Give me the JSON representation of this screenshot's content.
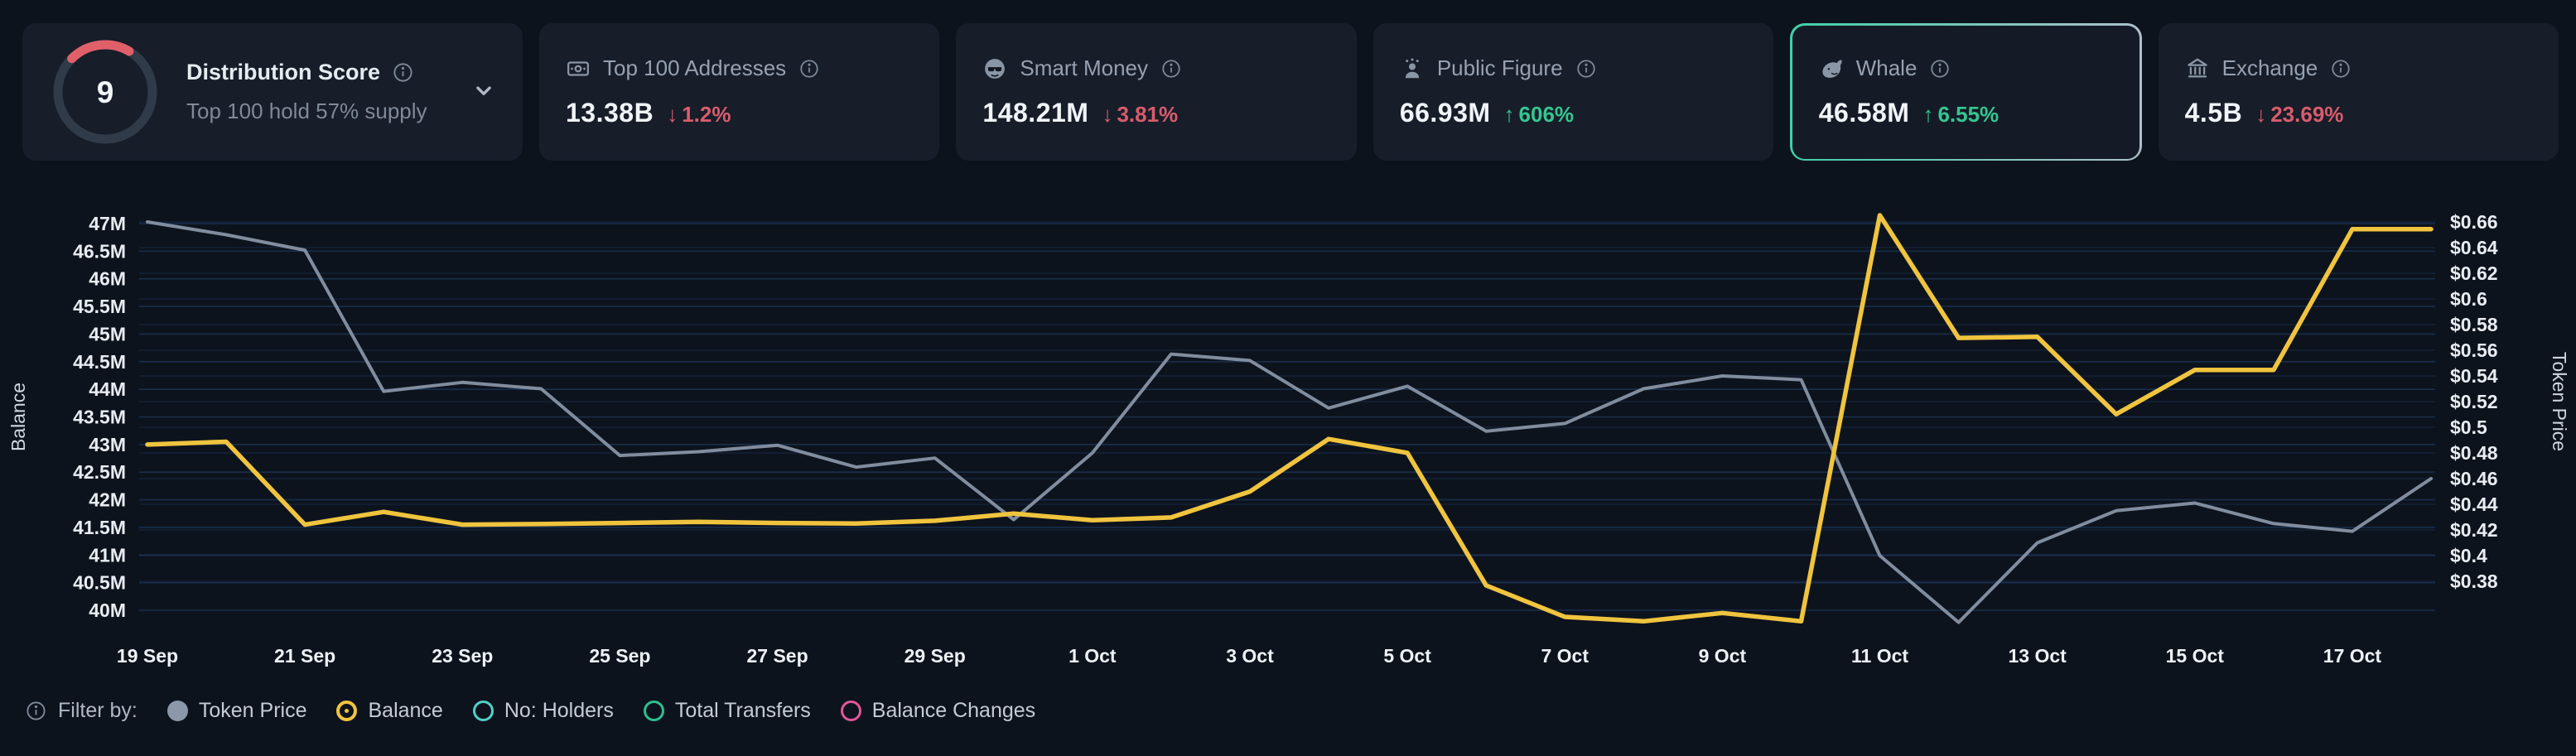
{
  "colors": {
    "background": "#0d131d",
    "card": "#171d29",
    "balance_line": "#f0c43e",
    "price_line": "#8b98a9",
    "up": "#35c690",
    "down": "#d95c6c",
    "selected_border": "#3fd0a8",
    "grid": "#24497a",
    "gauge_arc": "#e0606a"
  },
  "cards": {
    "distribution": {
      "score": "9",
      "title": "Distribution Score",
      "subtitle": "Top 100 hold 57% supply"
    },
    "stats": [
      {
        "id": "top-100-addresses",
        "title": "Top 100 Addresses",
        "value": "13.38B",
        "arrow": "↓",
        "change": "1.2%",
        "direction": "down",
        "selected": false
      },
      {
        "id": "smart-money",
        "title": "Smart Money",
        "value": "148.21M",
        "arrow": "↓",
        "change": "3.81%",
        "direction": "down",
        "selected": false
      },
      {
        "id": "public-figure",
        "title": "Public Figure",
        "value": "66.93M",
        "arrow": "↑",
        "change": "606%",
        "direction": "up",
        "selected": false
      },
      {
        "id": "whale",
        "title": "Whale",
        "value": "46.58M",
        "arrow": "↑",
        "change": "6.55%",
        "direction": "up",
        "selected": true
      },
      {
        "id": "exchange",
        "title": "Exchange",
        "value": "4.5B",
        "arrow": "↓",
        "change": "23.69%",
        "direction": "down",
        "selected": false
      }
    ]
  },
  "chart_data": {
    "type": "line",
    "x_dates": [
      "19 Sep",
      "20 Sep",
      "21 Sep",
      "22 Sep",
      "23 Sep",
      "24 Sep",
      "25 Sep",
      "26 Sep",
      "27 Sep",
      "28 Sep",
      "29 Sep",
      "30 Sep",
      "1 Oct",
      "2 Oct",
      "3 Oct",
      "4 Oct",
      "5 Oct",
      "6 Oct",
      "7 Oct",
      "8 Oct",
      "9 Oct",
      "10 Oct",
      "11 Oct",
      "12 Oct",
      "13 Oct",
      "14 Oct",
      "15 Oct",
      "16 Oct",
      "17 Oct",
      "18 Oct"
    ],
    "x_tick_labels": [
      "19 Sep",
      "21 Sep",
      "23 Sep",
      "25 Sep",
      "27 Sep",
      "29 Sep",
      "1 Oct",
      "3 Oct",
      "5 Oct",
      "7 Oct",
      "9 Oct",
      "11 Oct",
      "13 Oct",
      "15 Oct",
      "17 Oct"
    ],
    "x_tick_every": 2,
    "left_axis": {
      "label": "Balance",
      "unit": "M",
      "max": 47,
      "min": 40,
      "step": 0.5,
      "ticks": [
        "47M",
        "46.5M",
        "46M",
        "45.5M",
        "45M",
        "44.5M",
        "44M",
        "43.5M",
        "43M",
        "42.5M",
        "42M",
        "41.5M",
        "41M",
        "40.5M",
        "40M"
      ]
    },
    "right_axis": {
      "label": "Token Price",
      "unit": "$",
      "max": 0.66,
      "min": 0.38,
      "step": 0.02,
      "ticks": [
        "$0.66",
        "$0.64",
        "$0.62",
        "$0.6",
        "$0.58",
        "$0.56",
        "$0.54",
        "$0.52",
        "$0.5",
        "$0.48",
        "$0.46",
        "$0.44",
        "$0.42",
        "$0.4",
        "$0.38"
      ]
    },
    "grid": true,
    "legend_position": "bottom",
    "series": [
      {
        "name": "Token Price",
        "axis": "right",
        "color": "#8b98a9",
        "values": [
          0.66,
          0.65,
          0.638,
          0.528,
          0.535,
          0.53,
          0.478,
          0.481,
          0.486,
          0.469,
          0.476,
          0.428,
          0.48,
          0.557,
          0.552,
          0.515,
          0.532,
          0.497,
          0.503,
          0.53,
          0.54,
          0.537,
          0.4,
          0.348,
          0.41,
          0.435,
          0.441,
          0.425,
          0.419,
          0.46
        ]
      },
      {
        "name": "Balance",
        "axis": "left",
        "color": "#f0c43e",
        "values": [
          43.0,
          43.05,
          41.55,
          41.78,
          41.55,
          41.56,
          41.58,
          41.6,
          41.58,
          41.57,
          41.62,
          41.75,
          41.63,
          41.68,
          42.15,
          43.1,
          42.85,
          40.45,
          39.88,
          39.8,
          39.95,
          39.8,
          47.15,
          44.93,
          44.95,
          43.55,
          44.35,
          44.35,
          46.9,
          46.9
        ]
      }
    ]
  },
  "filter_bar": {
    "label": "Filter by:",
    "items": [
      {
        "label": "Token Price",
        "color": "#8b98a9",
        "style": "filled"
      },
      {
        "label": "Balance",
        "color": "#f0c43e",
        "style": "selected"
      },
      {
        "label": "No: Holders",
        "color": "#4fd1c5",
        "style": "ring"
      },
      {
        "label": "Total Transfers",
        "color": "#2fbe8f",
        "style": "ring"
      },
      {
        "label": "Balance Changes",
        "color": "#e0569a",
        "style": "ring"
      }
    ]
  }
}
